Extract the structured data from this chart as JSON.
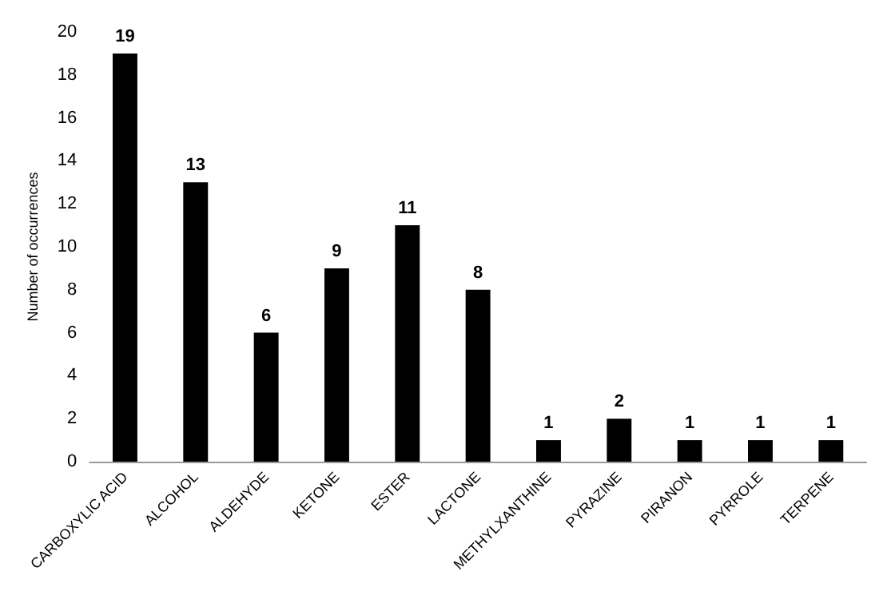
{
  "chart_data": {
    "type": "bar",
    "ylabel": "Number of occurrences",
    "categories": [
      "CARBOXYLIC ACID",
      "ALCOHOL",
      "ALDEHYDE",
      "KETONE",
      "ESTER",
      "LACTONE",
      "METHYLXANTHINE",
      "PYRAZINE",
      "PIRANON",
      "PYRROLE",
      "TERPENE"
    ],
    "values": [
      19,
      13,
      6,
      9,
      11,
      8,
      1,
      2,
      1,
      1,
      1
    ],
    "color": "#000000",
    "ylim": [
      0,
      20
    ],
    "yticks": [
      0,
      2,
      4,
      6,
      8,
      10,
      12,
      14,
      16,
      18,
      20
    ],
    "data_labels": true,
    "grid": false
  }
}
